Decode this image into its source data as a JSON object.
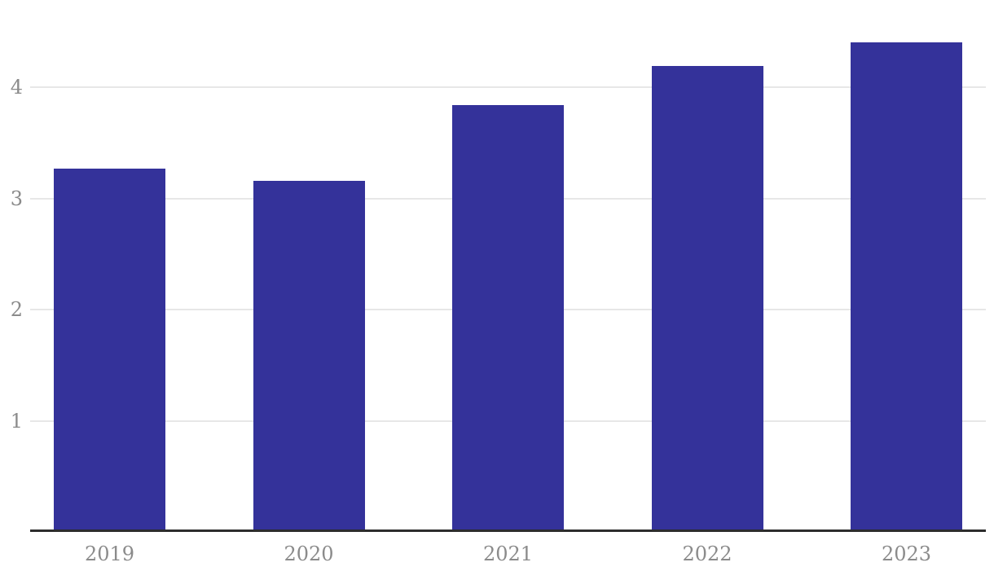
{
  "chart_data": {
    "type": "bar",
    "title": "",
    "xlabel": "",
    "ylabel": "",
    "categories": [
      "2019",
      "2020",
      "2021",
      "2022",
      "2023"
    ],
    "values": [
      3.27,
      3.16,
      3.84,
      4.19,
      4.4
    ],
    "y_ticks": [
      "1",
      "2",
      "3",
      "4"
    ],
    "y_tick_values": [
      1,
      2,
      3,
      4
    ],
    "ylim": [
      0,
      4.75
    ],
    "grid": "horizontal",
    "legend": "none",
    "colors": {
      "bar": "#34329a",
      "gridline": "#e7e7e7",
      "axis_line": "#2d2d2d",
      "tick_label": "#8b8b8b",
      "background": "#ffffff"
    }
  }
}
